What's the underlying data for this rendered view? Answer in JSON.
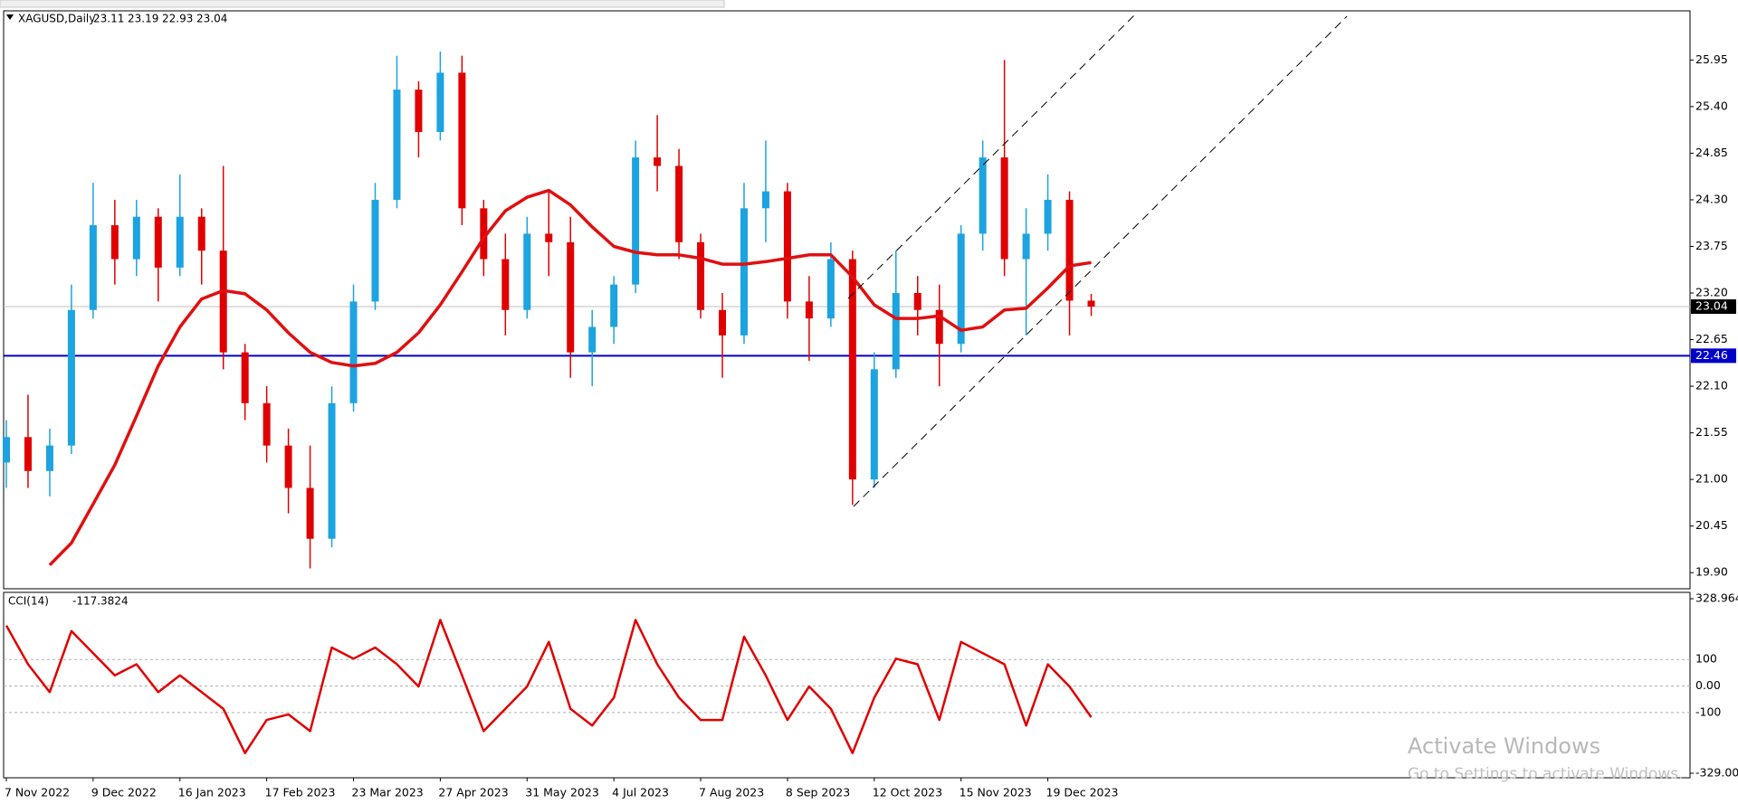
{
  "chart_data": [
    {
      "type": "candlestick",
      "title": "XAGUSD,Daily",
      "open": [
        21.2,
        21.5,
        21.1,
        21.4,
        23.0,
        24.0,
        23.6,
        24.1,
        23.5,
        24.1,
        23.7,
        22.5,
        21.9,
        21.4,
        20.9,
        20.3,
        21.9,
        23.1,
        24.3,
        25.6,
        25.1,
        25.8,
        24.2,
        23.6,
        23.0,
        23.9,
        23.8,
        22.5,
        22.8,
        23.3,
        24.8,
        24.7,
        23.8,
        23.0,
        22.7,
        24.2,
        24.4,
        23.1,
        22.9,
        23.6,
        21.0,
        22.3,
        23.2,
        23.0,
        22.6,
        23.9,
        24.8,
        23.6,
        23.9,
        24.3,
        23.11
      ],
      "high": [
        21.7,
        22.0,
        21.6,
        23.3,
        24.5,
        24.3,
        24.3,
        24.2,
        24.6,
        24.2,
        24.7,
        22.6,
        22.1,
        21.6,
        21.4,
        22.1,
        23.3,
        24.5,
        26.0,
        25.7,
        26.05,
        26.0,
        24.3,
        23.9,
        24.1,
        24.4,
        24.1,
        23.0,
        23.4,
        25.0,
        25.3,
        24.9,
        23.9,
        23.2,
        24.5,
        25.0,
        24.5,
        23.4,
        23.8,
        23.7,
        22.5,
        23.7,
        23.4,
        23.3,
        24.0,
        25.0,
        25.95,
        24.2,
        24.6,
        24.4,
        23.19
      ],
      "low": [
        20.9,
        20.9,
        20.8,
        21.3,
        22.9,
        23.3,
        23.4,
        23.1,
        23.4,
        23.3,
        22.3,
        21.7,
        21.2,
        20.6,
        19.95,
        20.2,
        21.8,
        23.0,
        24.2,
        24.8,
        25.0,
        24.0,
        23.4,
        22.7,
        22.9,
        23.4,
        22.2,
        22.1,
        22.6,
        23.2,
        24.4,
        23.6,
        22.9,
        22.2,
        22.6,
        23.8,
        22.9,
        22.4,
        22.8,
        20.7,
        20.9,
        22.2,
        22.7,
        22.1,
        22.5,
        23.7,
        23.4,
        22.7,
        23.7,
        22.7,
        22.93
      ],
      "close": [
        21.5,
        21.1,
        21.4,
        23.0,
        24.0,
        23.6,
        24.1,
        23.5,
        24.1,
        23.7,
        22.5,
        21.9,
        21.4,
        20.9,
        20.3,
        21.9,
        23.1,
        24.3,
        25.6,
        25.1,
        25.8,
        24.2,
        23.6,
        23.0,
        23.9,
        23.8,
        22.5,
        22.8,
        23.3,
        24.8,
        24.7,
        23.8,
        23.0,
        22.7,
        24.2,
        24.4,
        23.1,
        22.9,
        23.6,
        21.0,
        22.3,
        23.2,
        23.0,
        22.6,
        23.9,
        24.8,
        23.6,
        23.9,
        24.3,
        23.11,
        23.04
      ],
      "up_color": "#1ca3e0",
      "down_color": "#e00000",
      "overlay": {
        "color": "#e01010",
        "values": [
          null,
          null,
          19.99,
          20.25,
          20.71,
          21.17,
          21.75,
          22.34,
          22.8,
          23.13,
          23.23,
          23.19,
          23.0,
          22.73,
          22.5,
          22.38,
          22.34,
          22.37,
          22.5,
          22.73,
          23.06,
          23.45,
          23.85,
          24.17,
          24.33,
          24.41,
          24.24,
          23.98,
          23.75,
          23.68,
          23.65,
          23.65,
          23.61,
          23.54,
          23.54,
          23.57,
          23.61,
          23.65,
          23.65,
          23.39,
          23.06,
          22.9,
          22.9,
          22.93,
          22.76,
          22.8,
          23.0,
          23.02,
          23.26,
          23.52,
          23.56
        ]
      },
      "hline": {
        "value": 22.46,
        "color": "#0000c8"
      },
      "ylim": [
        19.71,
        26.53
      ],
      "yticks": [
        {
          "value": 19.9,
          "label": "19.90"
        },
        20.45,
        {
          "value": 21.0,
          "label": "21.00"
        },
        21.55,
        {
          "value": 22.1,
          "label": "22.10"
        },
        22.65,
        {
          "value": 23.2,
          "label": "23.20"
        },
        23.75,
        {
          "value": 24.3,
          "label": "24.30"
        },
        24.85,
        {
          "value": 25.4,
          "label": "25.40"
        },
        25.95
      ]
    },
    {
      "type": "line",
      "categories": [
        "7 Nov 2022",
        null,
        null,
        null,
        "9 Dec 2022",
        null,
        null,
        null,
        "16 Jan 2023",
        null,
        null,
        null,
        "17 Feb 2023",
        null,
        null,
        null,
        "23 Mar 2023",
        null,
        null,
        null,
        "27 Apr 2023",
        null,
        null,
        null,
        "31 May 2023",
        null,
        null,
        null,
        "4 Jul 2023",
        null,
        null,
        null,
        "7 Aug 2023",
        null,
        null,
        null,
        "8 Sep 2023",
        null,
        null,
        null,
        "12 Oct 2023",
        null,
        null,
        null,
        "15 Nov 2023",
        null,
        null,
        null,
        "19 Dec 2023",
        null,
        null
      ],
      "series": [
        {
          "name": "CCI(14)",
          "color": "#e00000",
          "values": [
            228,
            82,
            -23,
            207,
            124,
            40,
            82,
            -23,
            40,
            -23,
            -86,
            -253,
            -128,
            -107,
            -170,
            145,
            103,
            145,
            82,
            -2,
            249,
            40,
            -170,
            -86,
            -2,
            166,
            -86,
            -149,
            -44,
            249,
            82,
            -44,
            -128,
            -128,
            186,
            40,
            -128,
            -2,
            -86,
            -253,
            -44,
            103,
            82,
            -128,
            166,
            124,
            82,
            -149,
            82,
            -2,
            -117.3824
          ]
        }
      ],
      "ylim": [
        -346,
        353
      ],
      "yticks": [
        328.964,
        100,
        {
          "value": 0,
          "label": "0.00"
        },
        -100,
        {
          "value": -329,
          "label": "-329.000"
        }
      ]
    }
  ],
  "watermark": {
    "title": "Activate Windows",
    "subtitle": "Go to Settings to activate Windows."
  }
}
